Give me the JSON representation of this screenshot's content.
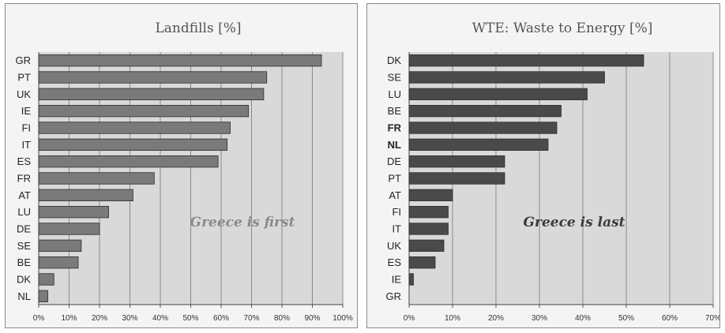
{
  "chart_data": [
    {
      "type": "bar",
      "orientation": "horizontal",
      "title": "Landfills [%]",
      "categories": [
        "GR",
        "PT",
        "UK",
        "IE",
        "FI",
        "IT",
        "ES",
        "FR",
        "AT",
        "LU",
        "DE",
        "SE",
        "BE",
        "DK",
        "NL"
      ],
      "values": [
        93,
        75,
        74,
        69,
        63,
        62,
        59,
        38,
        31,
        23,
        20,
        14,
        13,
        5,
        3
      ],
      "xlim": [
        0,
        100
      ],
      "x_ticks": [
        0,
        10,
        20,
        30,
        40,
        50,
        60,
        70,
        80,
        90,
        100
      ],
      "tick_labels": [
        "0%",
        "10%",
        "20%",
        "30%",
        "40%",
        "50%",
        "60%",
        "70%",
        "80%",
        "90%",
        "100%"
      ],
      "annotation": "Greece is first",
      "bold_categories": [],
      "grid": true,
      "bar_color": "#7a7a7a",
      "annotation_color": "#8a8a8a"
    },
    {
      "type": "bar",
      "orientation": "horizontal",
      "title": "WTE: Waste to Energy [%]",
      "categories": [
        "DK",
        "SE",
        "LU",
        "BE",
        "FR",
        "NL",
        "DE",
        "PT",
        "AT",
        "FI",
        "IT",
        "UK",
        "ES",
        "IE",
        "GR"
      ],
      "values": [
        54,
        45,
        41,
        35,
        34,
        32,
        22,
        22,
        10,
        9,
        9,
        8,
        6,
        1,
        0
      ],
      "xlim": [
        0,
        70
      ],
      "x_ticks": [
        0,
        10,
        20,
        30,
        40,
        50,
        60,
        70
      ],
      "tick_labels": [
        "0%",
        "10%",
        "20%",
        "30%",
        "40%",
        "50%",
        "60%",
        "70%"
      ],
      "annotation": "Greece is last",
      "bold_categories": [
        "FR",
        "NL"
      ],
      "grid": true,
      "bar_color": "#4a4a4a",
      "annotation_color": "#3a3a3a"
    }
  ]
}
